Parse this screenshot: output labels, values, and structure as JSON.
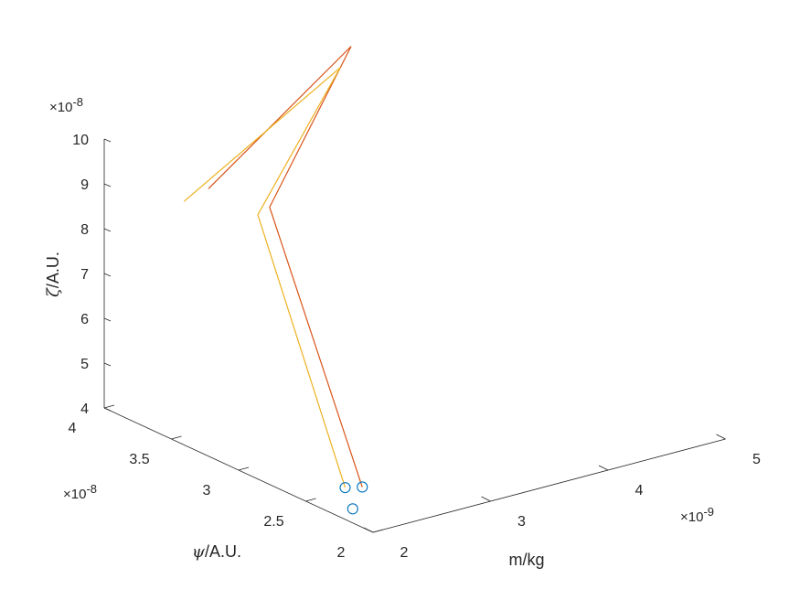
{
  "chart_data": {
    "type": "line",
    "projection": "3d",
    "grid": false,
    "axes": {
      "x": {
        "label": "m/kg",
        "range": [
          2,
          5
        ],
        "ticks": [
          2,
          3,
          4,
          5
        ],
        "tick_labels": [
          "2",
          "3",
          "4",
          "5"
        ],
        "exponent_label": "×10",
        "exponent": "-9"
      },
      "y": {
        "label_symbol": "ψ",
        "label": "/A.U.",
        "range": [
          2,
          4
        ],
        "ticks": [
          2,
          2.5,
          3,
          3.5,
          4
        ],
        "tick_labels": [
          "2",
          "2.5",
          "3",
          "3.5",
          "4"
        ],
        "exponent_label": "×10",
        "exponent": "-8"
      },
      "z": {
        "label_symbol": "ζ",
        "label": "/A.U.",
        "range": [
          4,
          10
        ],
        "ticks": [
          4,
          5,
          6,
          7,
          8,
          9,
          10
        ],
        "tick_labels": [
          "4",
          "5",
          "6",
          "7",
          "8",
          "9",
          "10"
        ],
        "exponent_label": "×10",
        "exponent": "-8"
      }
    },
    "series": [
      {
        "color": "#D95319",
        "style": "line",
        "points": [
          [
            2.0,
            2.08,
            4.9
          ],
          [
            1.6,
            2.42,
            10.95
          ],
          [
            2.9,
            2.95,
            12.9
          ],
          [
            1.8,
            3.05,
            10.35
          ]
        ]
      },
      {
        "color": "#EDB120",
        "style": "line",
        "points": [
          [
            1.9,
            2.12,
            4.9
          ],
          [
            1.5,
            2.42,
            10.85
          ],
          [
            2.75,
            2.9,
            12.6
          ],
          [
            1.65,
            3.1,
            10.1
          ]
        ]
      },
      {
        "color": "#0072BD",
        "style": "marker-circle",
        "points": [
          [
            2.0,
            2.08,
            4.9
          ],
          [
            1.9,
            2.12,
            4.9
          ],
          [
            1.85,
            2.02,
            4.6
          ]
        ]
      }
    ]
  }
}
